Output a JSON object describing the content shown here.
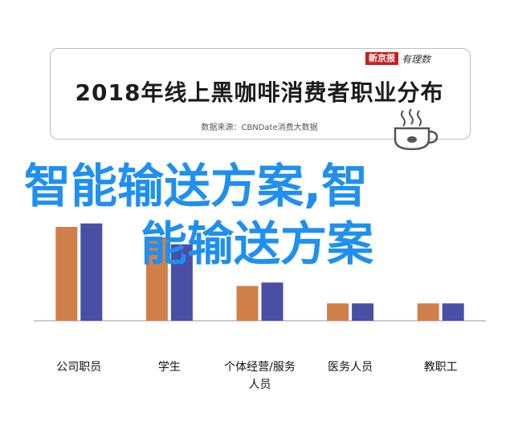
{
  "header": {
    "logo_text": "新京报",
    "logo_script": "有理数",
    "title": "2018年线上黑咖啡消费者职业分布",
    "source": "数据来源：CBNDate消费大数据",
    "cup_icon": "coffee-cup-icon"
  },
  "overlay": {
    "line1": "智能输送方案,智",
    "line2": "能输送方案"
  },
  "colors": {
    "series_a": "#d17f49",
    "series_b": "#4a4fa6"
  },
  "chart_data": {
    "type": "bar",
    "categories": [
      "公司职员",
      "学生",
      "个体经营/服务人员",
      "医务人员",
      "教职工"
    ],
    "category_lines": [
      [
        "公司职员"
      ],
      [
        "学生"
      ],
      [
        "个体经营/服务",
        "人员"
      ],
      [
        "医务人员"
      ],
      [
        "教职工"
      ]
    ],
    "series": [
      {
        "values": [
          27,
          24,
          10,
          5,
          5
        ]
      },
      {
        "values": [
          28,
          22,
          11,
          5,
          5
        ]
      }
    ],
    "ylim": [
      0,
      30
    ],
    "grid": false,
    "legend": "none"
  }
}
